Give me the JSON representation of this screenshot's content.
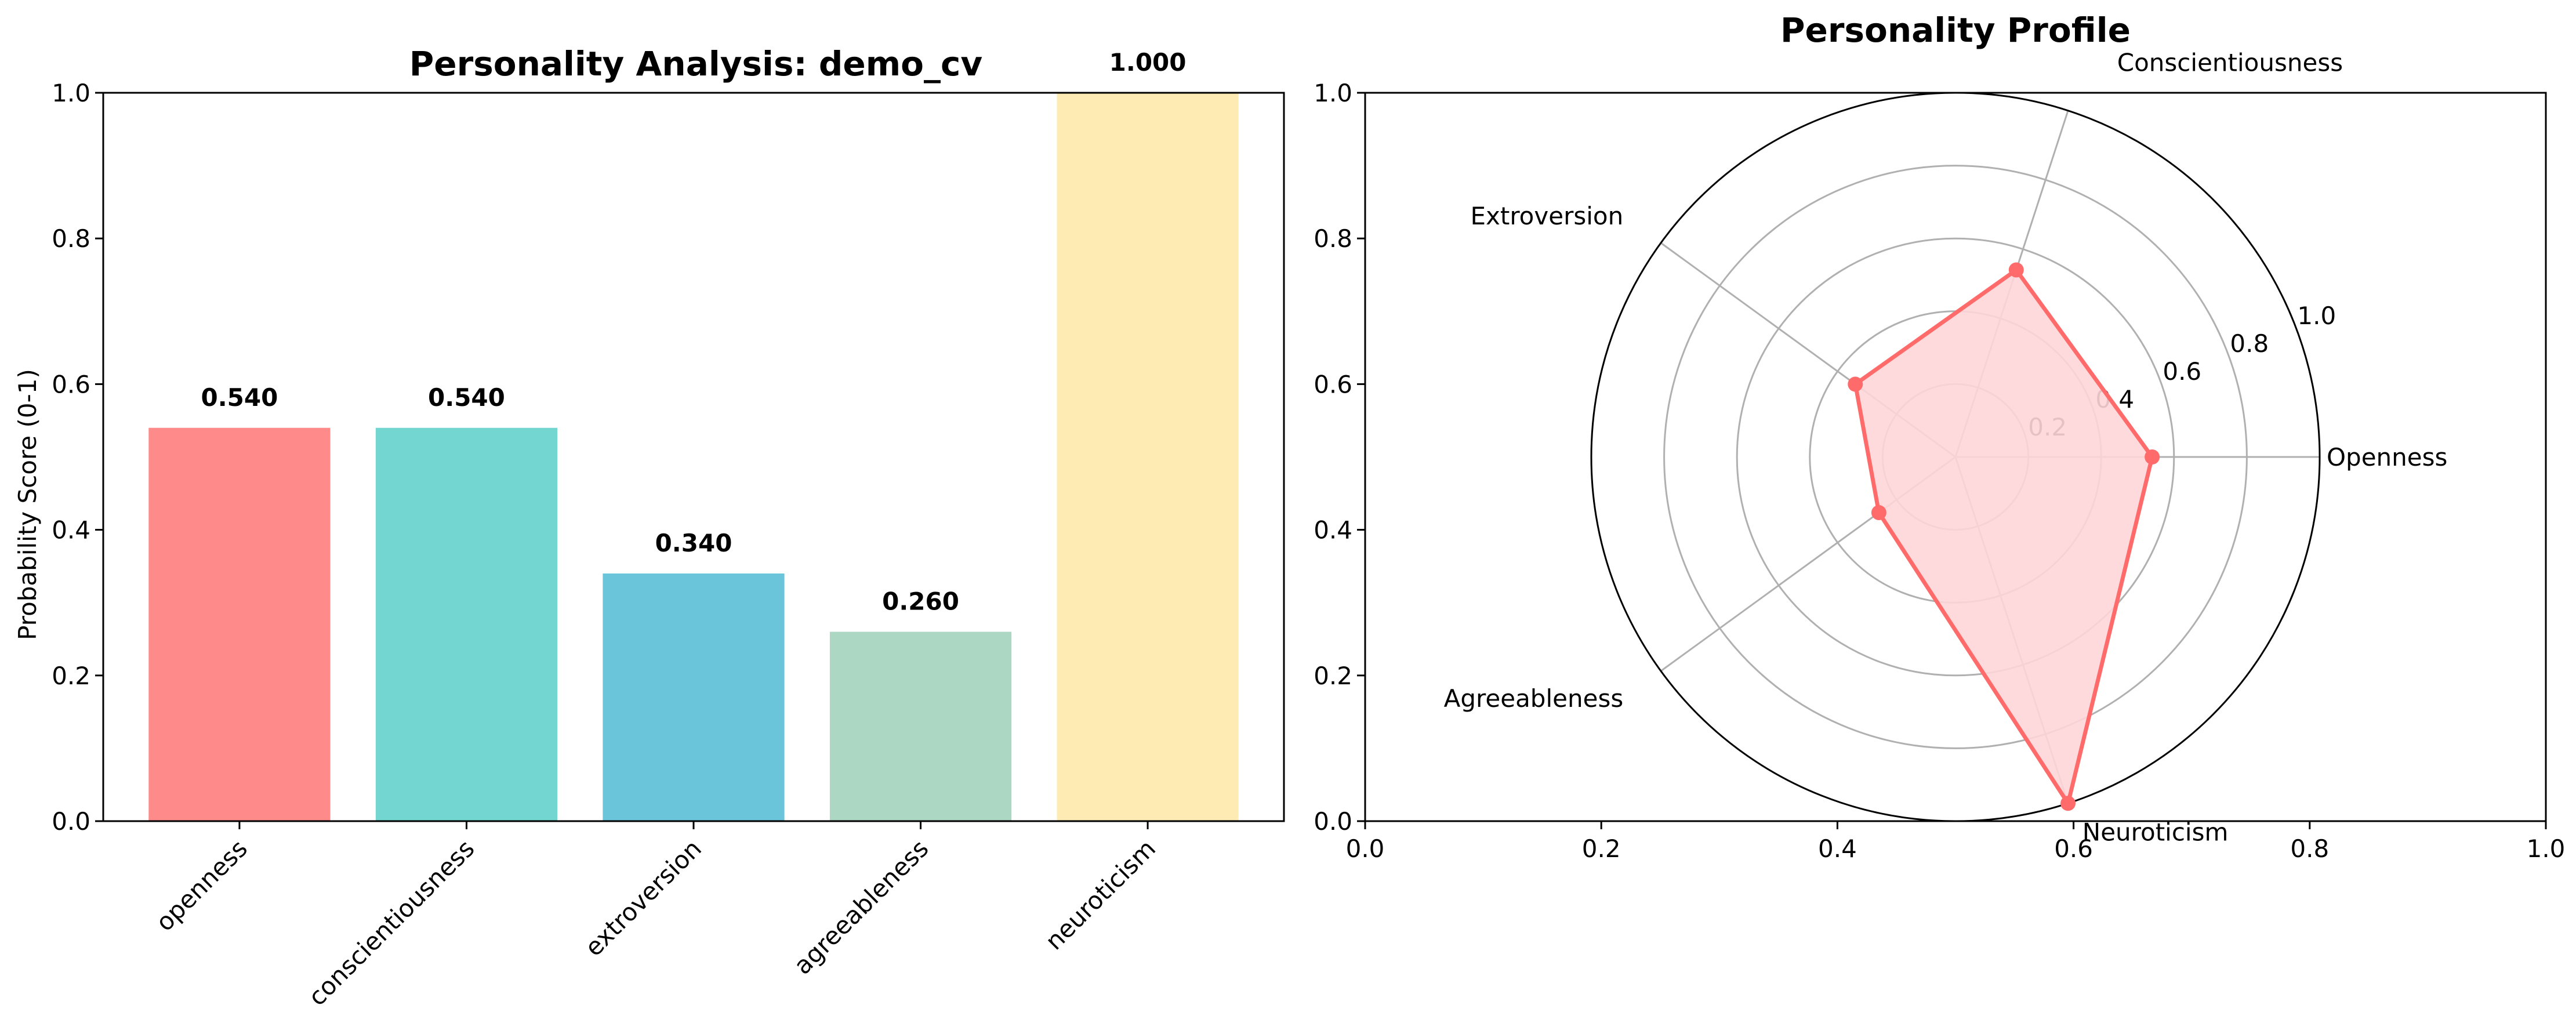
{
  "chart_data": [
    {
      "type": "bar",
      "title": "Personality Analysis: demo_cv",
      "ylabel": "Probability Score (0-1)",
      "xlabel": "",
      "categories": [
        "openness",
        "conscientiousness",
        "extroversion",
        "agreeableness",
        "neuroticism"
      ],
      "values": [
        0.54,
        0.54,
        0.34,
        0.26,
        1.0
      ],
      "data_labels": [
        "0.540",
        "0.540",
        "0.340",
        "0.260",
        "1.000"
      ],
      "colors": [
        "#ff8a8a",
        "#74d6d0",
        "#6bc5da",
        "#acd7c3",
        "#feebb4"
      ],
      "ylim": [
        0,
        1
      ],
      "yticks": [
        "0.0",
        "0.2",
        "0.4",
        "0.6",
        "0.8",
        "1.0"
      ],
      "grid": false
    },
    {
      "type": "radar",
      "title": "Personality Profile",
      "axes": [
        "Openness",
        "Conscientiousness",
        "Extroversion",
        "Agreeableness",
        "Neuroticism"
      ],
      "values": [
        0.54,
        0.54,
        0.34,
        0.26,
        1.0
      ],
      "rlim": [
        0,
        1
      ],
      "rticks": [
        "0.2",
        "0.4",
        "0.6",
        "0.8",
        "1.0"
      ],
      "line_color": "#ff6b6b",
      "fill_color": "#ffd6d8",
      "background_axes": {
        "xticks": [
          "0.0",
          "0.2",
          "0.4",
          "0.6",
          "0.8",
          "1.0"
        ],
        "yticks": [
          "0.0",
          "0.2",
          "0.4",
          "0.6",
          "0.8",
          "1.0"
        ],
        "xlim": [
          0,
          1
        ],
        "ylim": [
          0,
          1
        ]
      }
    }
  ]
}
